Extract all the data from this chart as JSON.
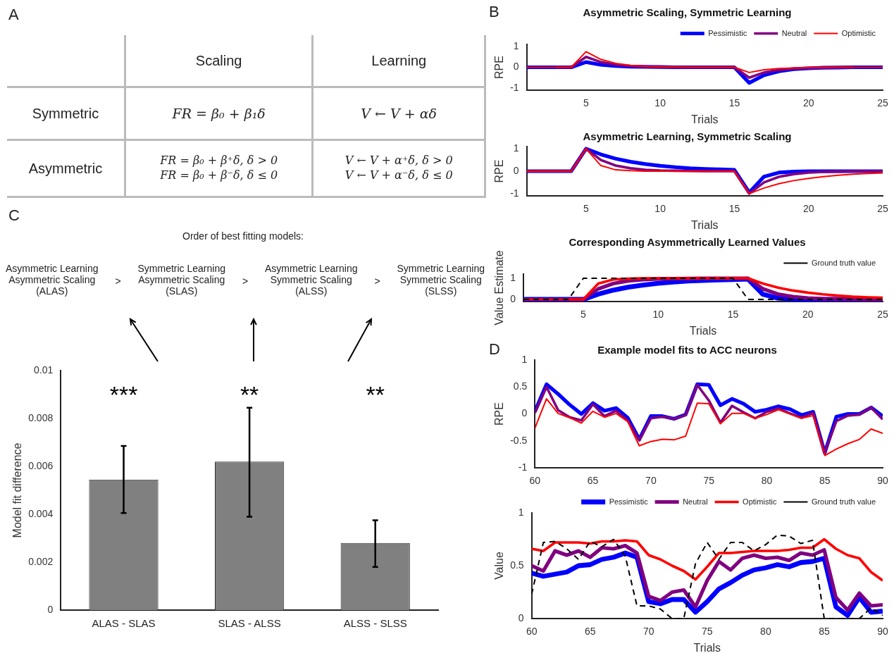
{
  "chart_data": [
    {
      "type": "other",
      "annotations": [
        "A",
        "Scaling",
        "Learning",
        "Symmetric",
        "FR = β₀ + β₁δ",
        "V ← V + αδ",
        "Asymmetric",
        "FR = β₀ + β⁺δ,  δ > 0\nFR = β₀ + β⁻δ,  δ ≤ 0",
        "V ← V + α⁺δ,  δ > 0\nV ← V + α⁻δ,  δ ≤ 0"
      ]
    },
    {
      "type": "line",
      "title": "Asymmetric Scaling, Symmetric Learning",
      "xlabel": "Trials",
      "ylabel": "RPE",
      "annotations": [
        "B"
      ],
      "legend": "top right",
      "marker": "none",
      "x": [
        1,
        2,
        3,
        4,
        5,
        6,
        7,
        8,
        9,
        10,
        11,
        12,
        13,
        14,
        15,
        16,
        17,
        18,
        19,
        20,
        21,
        22,
        23,
        24,
        25
      ],
      "xlim": [
        1,
        25
      ],
      "xticks": [
        5,
        10,
        15,
        20,
        25
      ],
      "ylim": [
        -1.1,
        1.1
      ],
      "yticks": [
        -1,
        0,
        1
      ],
      "series": [
        {
          "name": "Pessimistic",
          "color": "#0000ff",
          "values": [
            0,
            0,
            0,
            0,
            0.25,
            0.12,
            0.06,
            0.03,
            0.02,
            0.01,
            0,
            0,
            0,
            0,
            0,
            -0.75,
            -0.38,
            -0.19,
            -0.09,
            -0.05,
            -0.02,
            -0.01,
            0,
            0,
            0
          ]
        },
        {
          "name": "Neutral",
          "color": "#800080",
          "values": [
            null,
            null,
            0,
            0,
            0.5,
            0.25,
            0.13,
            0.06,
            0.03,
            0.02,
            0.01,
            0,
            0,
            0,
            0,
            -0.5,
            -0.25,
            -0.13,
            -0.06,
            -0.03,
            -0.02,
            -0.01,
            0,
            null,
            null
          ]
        },
        {
          "name": "Optimistic",
          "color": "#ff0000",
          "values": [
            0,
            0,
            0,
            0,
            0.75,
            0.38,
            0.19,
            0.09,
            0.05,
            0.02,
            0.01,
            0,
            0,
            0,
            0,
            -0.25,
            -0.12,
            -0.06,
            -0.03,
            -0.02,
            -0.01,
            0,
            0,
            0,
            0
          ]
        }
      ]
    },
    {
      "type": "line",
      "title": "Asymmetric Learning, Symmetric Scaling",
      "xlabel": "Trials",
      "ylabel": "RPE",
      "marker": "none",
      "x": [
        1,
        2,
        3,
        4,
        5,
        6,
        7,
        8,
        9,
        10,
        11,
        12,
        13,
        14,
        15,
        16,
        17,
        18,
        19,
        20,
        21,
        22,
        23,
        24,
        25
      ],
      "xlim": [
        1,
        25
      ],
      "xticks": [
        5,
        10,
        15,
        20,
        25
      ],
      "ylim": [
        -1.1,
        1.1
      ],
      "yticks": [
        -1,
        0,
        1
      ],
      "series": [
        {
          "color": "#0000ff",
          "values": [
            0,
            0,
            0,
            0,
            1,
            0.75,
            0.56,
            0.42,
            0.32,
            0.24,
            0.18,
            0.13,
            0.1,
            0.08,
            0.06,
            -0.95,
            -0.24,
            -0.06,
            -0.02,
            0,
            0,
            0,
            0,
            0,
            0
          ]
        },
        {
          "color": "#800080",
          "values": [
            0,
            0,
            0,
            0,
            1,
            0.5,
            0.25,
            0.13,
            0.06,
            0.03,
            0.02,
            0.01,
            0,
            0,
            0,
            -1,
            -0.5,
            -0.25,
            -0.13,
            -0.06,
            -0.03,
            -0.02,
            -0.01,
            0,
            0
          ]
        },
        {
          "color": "#ff0000",
          "values": [
            0,
            0,
            0,
            0,
            1,
            0.25,
            0.06,
            0.02,
            0,
            0,
            0,
            0,
            0,
            0,
            0,
            -1,
            -0.75,
            -0.56,
            -0.42,
            -0.32,
            -0.24,
            -0.18,
            -0.13,
            -0.1,
            -0.08
          ]
        }
      ]
    },
    {
      "type": "line",
      "title": "Corresponding Asymmetrically Learned Values",
      "xlabel": "Trials",
      "ylabel": "Value Estimate",
      "legend": "top right",
      "marker": "none",
      "x": [
        1,
        2,
        3,
        4,
        5,
        6,
        7,
        8,
        9,
        10,
        11,
        12,
        13,
        14,
        15,
        16,
        17,
        18,
        19,
        20,
        21,
        22,
        23,
        24,
        25
      ],
      "xlim": [
        1,
        25
      ],
      "xticks": [
        5,
        10,
        15,
        20,
        25
      ],
      "ylim": [
        -0.1,
        1.2
      ],
      "yticks": [
        0,
        1
      ],
      "series": [
        {
          "color": "#0000ff",
          "values": [
            0,
            0,
            0,
            0,
            0,
            0.25,
            0.44,
            0.58,
            0.68,
            0.76,
            0.82,
            0.87,
            0.9,
            0.92,
            0.94,
            0.96,
            0.24,
            0.06,
            0.02,
            0,
            0,
            0,
            0,
            0,
            0
          ]
        },
        {
          "color": "#800080",
          "values": [
            null,
            null,
            null,
            0,
            0,
            0.5,
            0.75,
            0.88,
            0.94,
            0.97,
            0.98,
            0.99,
            1,
            1,
            1,
            1,
            0.5,
            0.25,
            0.13,
            0.06,
            0.03,
            0.02,
            0.01,
            0,
            0
          ]
        },
        {
          "color": "#ff0000",
          "values": [
            0,
            0,
            0,
            0,
            0,
            0.75,
            0.94,
            0.98,
            1,
            1,
            1,
            1,
            1,
            1,
            1,
            1,
            0.75,
            0.56,
            0.42,
            0.32,
            0.24,
            0.18,
            0.13,
            0.1,
            0.08
          ]
        },
        {
          "name": "Ground truth value",
          "color": "#000000",
          "line_style": "dashed",
          "values": [
            0,
            0,
            0,
            0,
            1,
            1,
            1,
            1,
            1,
            1,
            1,
            1,
            1,
            1,
            1,
            0,
            0,
            0,
            0,
            0,
            0,
            0,
            0,
            0,
            0
          ]
        }
      ]
    },
    {
      "type": "bar",
      "title": "Order of best fitting models:",
      "ylabel": "Model fit difference",
      "categories": [
        "ALAS - SLAS",
        "SLAS - ALSS",
        "ALSS - SLSS"
      ],
      "values": [
        0.00545,
        0.0062,
        0.0028
      ],
      "errors": [
        [
          0.00405,
          0.00685
        ],
        [
          0.0039,
          0.00845
        ],
        [
          0.0018,
          0.00375
        ]
      ],
      "color": "#808080",
      "ylim": [
        0,
        0.01
      ],
      "yticks": [
        0,
        0.002,
        0.004,
        0.006,
        0.008,
        0.01
      ],
      "annotations": [
        "C",
        "Asymmetric Learning\nAsymmetric Scaling\n(ALAS)",
        ">",
        "Symmetric Learning\nAsymmetric Scaling\n(SLAS)",
        ">",
        "Asymmetric Learning\nSymmetric Scaling\n(ALSS)",
        ">",
        "Symmetric Learning\nSymmetric Scaling\n(SLSS)",
        "***",
        "**",
        "**"
      ]
    },
    {
      "type": "line",
      "title": "Example model fits to ACC neurons",
      "ylabel": "RPE",
      "annotations": [
        "D"
      ],
      "marker": "none",
      "x": [
        60,
        61,
        62,
        63,
        64,
        65,
        66,
        67,
        68,
        69,
        70,
        71,
        72,
        73,
        74,
        75,
        76,
        77,
        78,
        79,
        80,
        81,
        82,
        83,
        84,
        85,
        86,
        87,
        88,
        89,
        90
      ],
      "xlim": [
        60,
        90
      ],
      "xticks": [
        60,
        65,
        70,
        75,
        80,
        85,
        90
      ],
      "ylim": [
        -1,
        1
      ],
      "yticks": [
        -1,
        -0.5,
        0,
        0.5,
        1
      ],
      "series": [
        {
          "color": "#0000ff",
          "values": [
            0.05,
            0.55,
            0.37,
            0.17,
            0,
            0.2,
            0.06,
            0.11,
            -0.07,
            -0.47,
            -0.04,
            -0.04,
            -0.09,
            -0.01,
            0.55,
            0.54,
            0.16,
            0.28,
            0.19,
            0.04,
            0.08,
            0.14,
            0.09,
            -0.02,
            0.04,
            -0.72,
            -0.05,
            0,
            0,
            0.12,
            -0.04
          ]
        },
        {
          "color": "#800080",
          "values": [
            0.02,
            0.5,
            0.07,
            -0.06,
            -0.12,
            0.18,
            -0.04,
            0.06,
            -0.12,
            -0.49,
            -0.08,
            -0.05,
            -0.09,
            -0.02,
            0.54,
            0.25,
            -0.16,
            0.15,
            0.03,
            -0.08,
            0.04,
            0.1,
            0.01,
            -0.07,
            0.02,
            -0.72,
            -0.13,
            -0.03,
            -0.01,
            0.12,
            -0.1
          ]
        },
        {
          "color": "#ff0000",
          "values": [
            -0.26,
            0.28,
            0.01,
            -0.07,
            -0.17,
            0.05,
            -0.06,
            0.01,
            -0.14,
            -0.59,
            -0.51,
            -0.47,
            -0.48,
            -0.41,
            0.2,
            0.19,
            -0.18,
            0.01,
            0.01,
            -0.08,
            -0.01,
            0.08,
            0,
            -0.08,
            -0.03,
            -0.77,
            -0.65,
            -0.55,
            -0.47,
            -0.28,
            -0.36
          ]
        }
      ]
    },
    {
      "type": "line",
      "xlabel": "Trials",
      "ylabel": "Value",
      "legend": "top right",
      "marker": "none",
      "x": [
        60,
        61,
        62,
        63,
        64,
        65,
        66,
        67,
        68,
        69,
        70,
        71,
        72,
        73,
        74,
        75,
        76,
        77,
        78,
        79,
        80,
        81,
        82,
        83,
        84,
        85,
        86,
        87,
        88,
        89,
        90
      ],
      "xlim": [
        60,
        90
      ],
      "xticks": [
        60,
        65,
        70,
        75,
        80,
        85,
        90
      ],
      "ylim": [
        0,
        1
      ],
      "yticks": [
        0,
        0.5,
        1
      ],
      "series": [
        {
          "name": "Pessimistic",
          "color": "#0000ff",
          "values": [
            0.43,
            0.4,
            0.42,
            0.44,
            0.5,
            0.51,
            0.56,
            0.58,
            0.62,
            0.58,
            0.16,
            0.14,
            0.18,
            0.18,
            0.06,
            0.16,
            0.28,
            0.34,
            0.41,
            0.46,
            0.48,
            0.51,
            0.49,
            0.53,
            0.54,
            0.57,
            0.11,
            0.03,
            0.2,
            0.06,
            0.07
          ]
        },
        {
          "name": "Neutral",
          "color": "#800080",
          "values": [
            0.5,
            0.45,
            0.64,
            0.6,
            0.64,
            0.58,
            0.67,
            0.66,
            0.69,
            0.62,
            0.21,
            0.17,
            0.25,
            0.27,
            0.11,
            0.36,
            0.54,
            0.46,
            0.57,
            0.6,
            0.57,
            0.58,
            0.55,
            0.62,
            0.6,
            0.65,
            0.2,
            0.08,
            0.24,
            0.12,
            0.13
          ]
        },
        {
          "name": "Optimistic",
          "color": "#ff0000",
          "values": [
            0.66,
            0.64,
            0.72,
            0.72,
            0.72,
            0.71,
            0.73,
            0.73,
            0.74,
            0.73,
            0.6,
            0.56,
            0.5,
            0.45,
            0.37,
            0.49,
            0.62,
            0.62,
            0.63,
            0.64,
            0.64,
            0.64,
            0.65,
            0.67,
            0.67,
            0.75,
            0.66,
            0.6,
            0.57,
            0.44,
            0.36
          ]
        },
        {
          "name": "Ground truth value",
          "color": "#000000",
          "line_style": "dashed",
          "values": [
            0.23,
            0.72,
            0.73,
            0.66,
            0.56,
            0.73,
            0.68,
            0.75,
            0.59,
            0.12,
            0.12,
            0.09,
            0,
            0,
            0.52,
            0.72,
            0.56,
            0.72,
            0.72,
            0.64,
            0.7,
            0.79,
            0.78,
            0.71,
            0.74,
            0,
            0,
            0,
            0,
            0.1,
            0.03
          ]
        }
      ]
    }
  ]
}
